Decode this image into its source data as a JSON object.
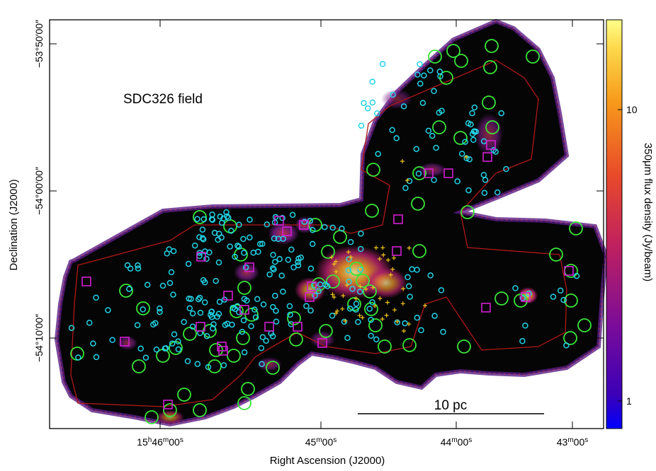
{
  "figure": {
    "field_label": "SDC326 field",
    "scale_bar_label": "10 pc",
    "x_axis_title": "Right Ascension (J2000)",
    "y_axis_title": "Declination (J2000)",
    "colorbar_title": "350μm flux density (Jy/beam)",
    "ra_ticks": [
      {
        "h": "15",
        "m": "46",
        "s": "00"
      },
      {
        "h": "",
        "m": "45",
        "s": "00"
      },
      {
        "h": "",
        "m": "44",
        "s": "00"
      },
      {
        "h": "",
        "m": "43",
        "s": "00"
      }
    ],
    "dec_ticks": [
      "−53°50′00″",
      "−54°00′00″",
      "−54°10′00″"
    ],
    "colorbar_ticks": [
      "10",
      "1"
    ],
    "colors": {
      "background": "#000000",
      "frame": "#000000",
      "outline": "#b01818",
      "circle_large": "#39e639",
      "circle_small": "#22d3e6",
      "square": "#d21ed2",
      "plus": "#f0c419",
      "colorbar_top": "#ffff7a",
      "colorbar_bottom": "#0000ff"
    }
  }
}
